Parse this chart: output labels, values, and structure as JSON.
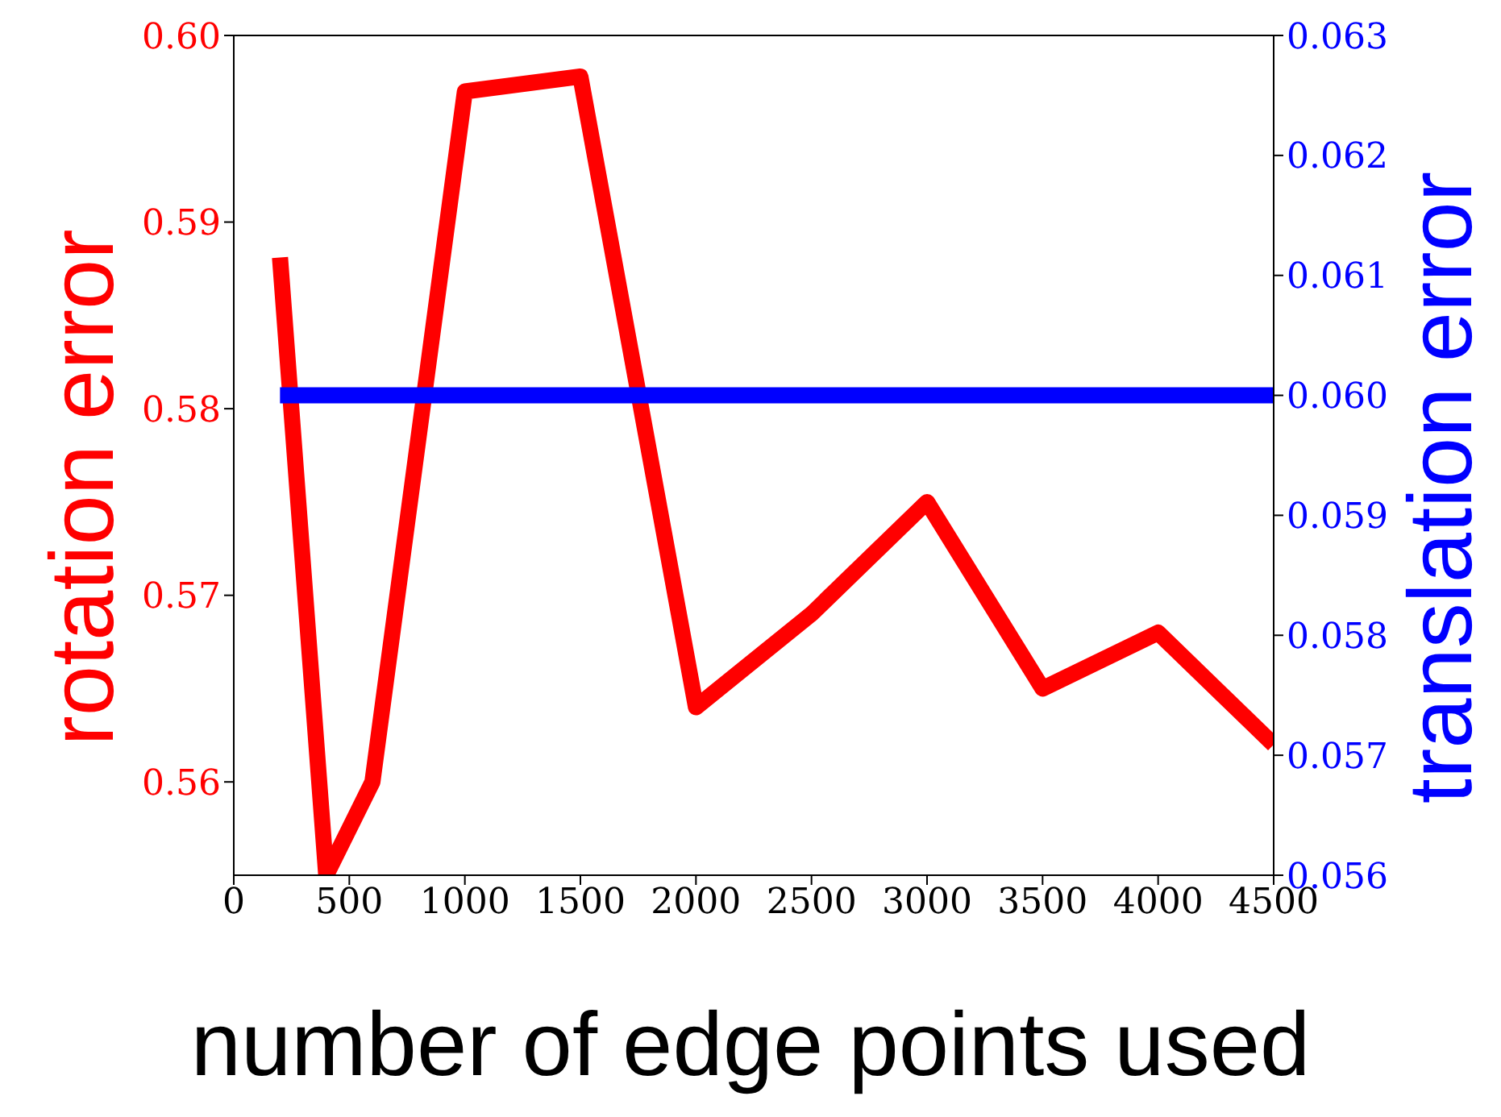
{
  "chart_data": {
    "type": "line",
    "xlabel": "number of edge points used",
    "ylabel": "rotation error",
    "y2label": "translation error",
    "x": [
      200,
      400,
      600,
      1000,
      1500,
      2000,
      2500,
      3000,
      3500,
      4000,
      4500
    ],
    "series": [
      {
        "color": "#ff0000",
        "values": [
          0.5881,
          0.555,
          0.56,
          0.597,
          0.5978,
          0.564,
          0.569,
          0.575,
          0.565,
          0.568,
          0.562
        ]
      },
      {
        "color": "#0000ff",
        "axis": "y2",
        "values": [
          0.06,
          0.06,
          0.06,
          0.06,
          0.06,
          0.06,
          0.06,
          0.06,
          0.06,
          0.06,
          0.06
        ]
      }
    ],
    "xlim": [
      0,
      4500
    ],
    "xticks": [
      0,
      500,
      1000,
      1500,
      2000,
      2500,
      3000,
      3500,
      4000,
      4500
    ],
    "ylim": [
      0.555,
      0.6
    ],
    "yticks": [
      0.56,
      0.57,
      0.58,
      0.59,
      {
        "value": 0.6,
        "label": "0.60"
      }
    ],
    "y2lim": [
      0.056,
      0.063
    ],
    "y2ticks": [
      0.056,
      0.057,
      0.058,
      0.059,
      {
        "value": 0.06,
        "label": "0.060"
      },
      0.061,
      0.062,
      0.063
    ],
    "grid": false,
    "legend": false,
    "marker": "none",
    "line_style": "solid"
  }
}
